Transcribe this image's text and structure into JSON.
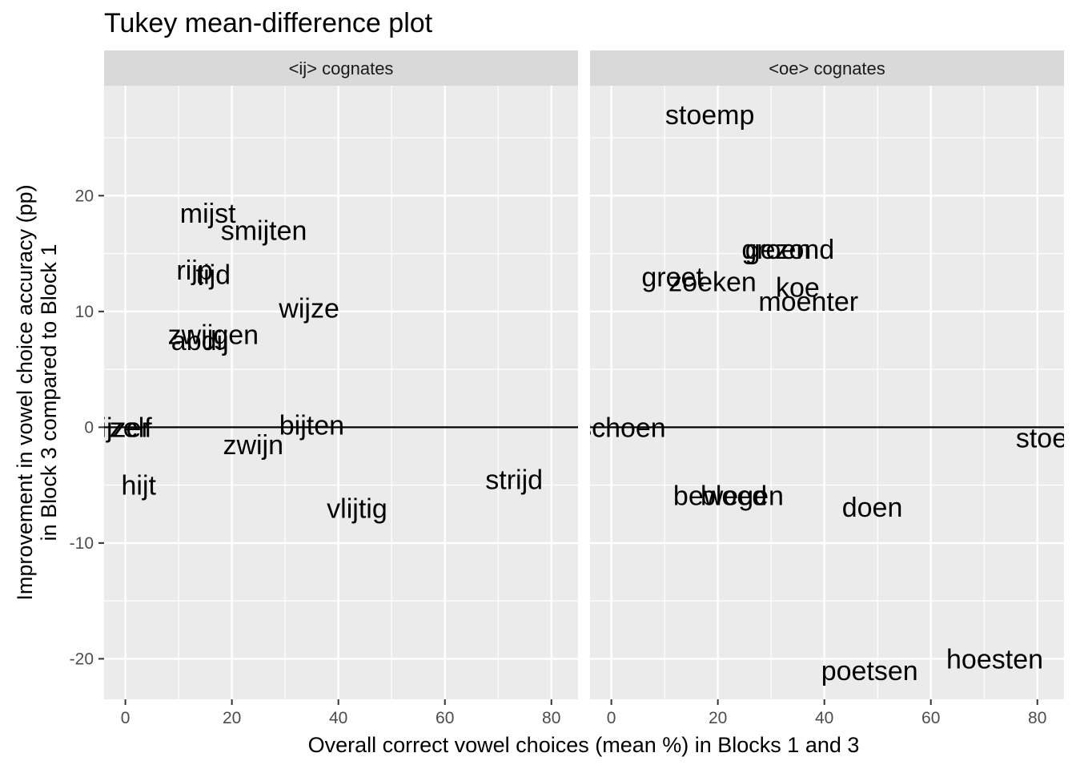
{
  "chart_data": {
    "type": "scatter",
    "title": "Tukey mean-difference plot",
    "xlabel": "Overall correct vowel choices (mean %) in Blocks 1 and 3",
    "ylabel_lines": [
      "Improvement in vowel choice accuracy (pp)",
      "in Block 3 compared to Block 1"
    ],
    "xlim": [
      -4,
      85
    ],
    "ylim": [
      -23.5,
      29.5
    ],
    "x_ticks": [
      0,
      20,
      40,
      60,
      80
    ],
    "y_ticks": [
      -20,
      -10,
      0,
      10,
      20
    ],
    "y_tick_labels": [
      "-20",
      "-10",
      "0",
      "10",
      "20"
    ],
    "reference_line_y": 0,
    "grid": true,
    "label_color": "#000000",
    "panel_bg": "#ebebeb",
    "strip_bg": "#d9d9d9",
    "panels": [
      {
        "strip_label": "<ij> cognates",
        "points": [
          {
            "label": "mijst",
            "x": 15.5,
            "y": 18.5
          },
          {
            "label": "smijten",
            "x": 26,
            "y": 17
          },
          {
            "label": "rijp",
            "x": 13,
            "y": 13.6
          },
          {
            "label": "tijd",
            "x": 16.5,
            "y": 13.2
          },
          {
            "label": "wijze",
            "x": 34.5,
            "y": 10.3
          },
          {
            "label": "zwijgen",
            "x": 16.5,
            "y": 8
          },
          {
            "label": "abdij",
            "x": 14,
            "y": 7.5
          },
          {
            "label": "zelf",
            "x": 1,
            "y": 0
          },
          {
            "label": "ijzer",
            "x": 0,
            "y": 0
          },
          {
            "label": "bijten",
            "x": 35,
            "y": 0.2
          },
          {
            "label": "zwijn",
            "x": 24,
            "y": -1.5
          },
          {
            "label": "hijt",
            "x": 2.5,
            "y": -5
          },
          {
            "label": "strijd",
            "x": 73,
            "y": -4.5
          },
          {
            "label": "vlijtig",
            "x": 43.5,
            "y": -7
          }
        ]
      },
      {
        "strip_label": "<oe> cognates",
        "points": [
          {
            "label": "stoemp",
            "x": 18.5,
            "y": 27
          },
          {
            "label": "gezond",
            "x": 33.5,
            "y": 15.4
          },
          {
            "label": "groen",
            "x": 31,
            "y": 15.4
          },
          {
            "label": "groet",
            "x": 11.5,
            "y": 13
          },
          {
            "label": "zoeken",
            "x": 19,
            "y": 12.6
          },
          {
            "label": "koe",
            "x": 35,
            "y": 12.1
          },
          {
            "label": "moenter",
            "x": 37,
            "y": 10.9
          },
          {
            "label": "schoen",
            "x": 2,
            "y": 0
          },
          {
            "label": "stoet",
            "x": 81.5,
            "y": -0.9
          },
          {
            "label": "bewegen",
            "x": 22,
            "y": -5.9
          },
          {
            "label": "bloed",
            "x": 23,
            "y": -5.9
          },
          {
            "label": "doen",
            "x": 49,
            "y": -6.9
          },
          {
            "label": "poetsen",
            "x": 48.5,
            "y": -21
          },
          {
            "label": "hoesten",
            "x": 72,
            "y": -20
          }
        ]
      }
    ]
  }
}
